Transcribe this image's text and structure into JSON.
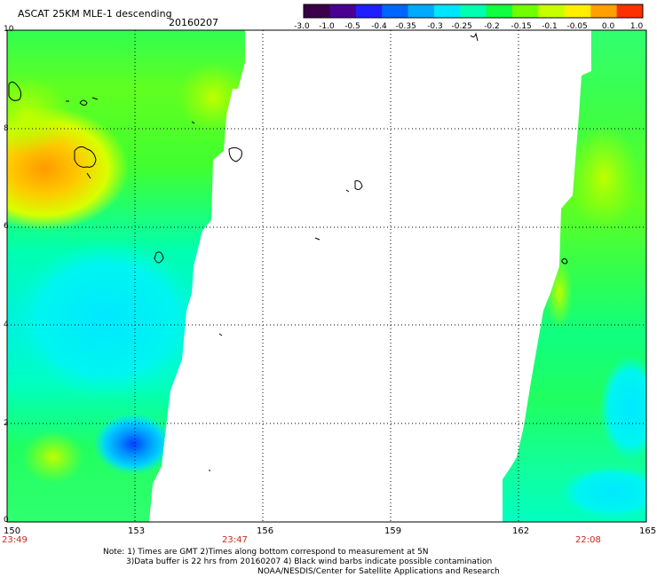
{
  "header": {
    "title": "ASCAT 25KM MLE-1 descending",
    "date": "20160207"
  },
  "colorbar": {
    "ticks": [
      "-3.0",
      "-1.0",
      "-0.5",
      "-0.4",
      "-0.35",
      "-0.3",
      "-0.25",
      "-0.2",
      "-0.15",
      "-0.1",
      "-0.05",
      "0.0",
      "1.0"
    ],
    "colors": [
      "#3a0048",
      "#4a0090",
      "#2020ff",
      "#0066ff",
      "#00aaff",
      "#00e5ff",
      "#00ffb0",
      "#10ff40",
      "#70ff00",
      "#c8ff00",
      "#ffee00",
      "#ffa000",
      "#ff3000"
    ]
  },
  "axes": {
    "lat_labels": [
      "10",
      "8",
      "6",
      "4",
      "2",
      "0"
    ],
    "lon_labels": [
      "150",
      "153",
      "156",
      "159",
      "162",
      "165"
    ]
  },
  "times": [
    "23:49",
    "23:47",
    "22:08"
  ],
  "notes": {
    "line1": "Note: 1) Times are GMT 2)Times along bottom correspond to measurement at 5N",
    "line2": "3)Data buffer is 22 hrs from 20160207 4) Black wind barbs indicate possible contamination",
    "line3": "NOAA/NESDIS/Center for Satellite Applications and Research"
  }
}
